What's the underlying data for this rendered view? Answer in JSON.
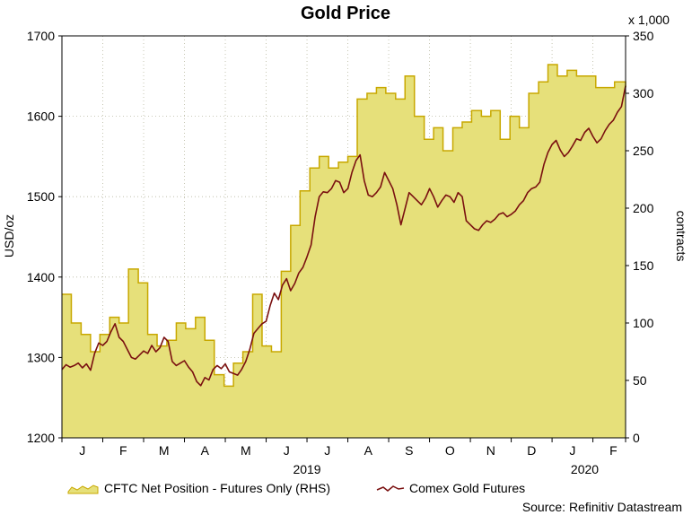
{
  "chart_data": {
    "type": "area",
    "title": "Gold Price",
    "y_left": {
      "label": "USD/oz",
      "range": [
        1200,
        1700
      ],
      "ticks": [
        "1200",
        "1300",
        "1400",
        "1500",
        "1600",
        "1700"
      ]
    },
    "y_right": {
      "label": "contracts",
      "multiplier_label": "x 1,000",
      "range": [
        0,
        350
      ],
      "ticks": [
        "0",
        "50",
        "100",
        "150",
        "200",
        "250",
        "300",
        "350"
      ]
    },
    "x_axis": {
      "range": [
        0,
        13.8
      ],
      "months": [
        {
          "label": "J",
          "x": 0.5
        },
        {
          "label": "F",
          "x": 1.5
        },
        {
          "label": "M",
          "x": 2.5
        },
        {
          "label": "A",
          "x": 3.5
        },
        {
          "label": "M",
          "x": 4.5
        },
        {
          "label": "J",
          "x": 5.5
        },
        {
          "label": "J",
          "x": 6.5
        },
        {
          "label": "A",
          "x": 7.5
        },
        {
          "label": "S",
          "x": 8.5
        },
        {
          "label": "O",
          "x": 9.5
        },
        {
          "label": "N",
          "x": 10.5
        },
        {
          "label": "D",
          "x": 11.5
        },
        {
          "label": "J",
          "x": 12.5
        },
        {
          "label": "F",
          "x": 13.5
        }
      ],
      "years": [
        {
          "label": "2019",
          "x": 6.0
        },
        {
          "label": "2020",
          "x": 12.8
        }
      ]
    },
    "grid": true,
    "series": [
      {
        "name": "CFTC Net Position - Futures Only (RHS)",
        "type": "area-step",
        "axis": "right",
        "color": "#e6e07a",
        "line_color": "#c8a800",
        "x": [
          0,
          0.23,
          0.47,
          0.7,
          0.93,
          1.17,
          1.4,
          1.63,
          1.87,
          2.1,
          2.33,
          2.57,
          2.8,
          3.03,
          3.27,
          3.5,
          3.73,
          3.97,
          4.2,
          4.43,
          4.67,
          4.9,
          5.13,
          5.37,
          5.6,
          5.83,
          6.07,
          6.3,
          6.53,
          6.77,
          7.0,
          7.23,
          7.47,
          7.7,
          7.93,
          8.17,
          8.4,
          8.63,
          8.87,
          9.1,
          9.33,
          9.57,
          9.8,
          10.03,
          10.27,
          10.5,
          10.73,
          10.97,
          11.2,
          11.43,
          11.67,
          11.9,
          12.13,
          12.37,
          12.6,
          12.83,
          13.07,
          13.3,
          13.53,
          13.8
        ],
        "values": [
          125,
          100,
          90,
          75,
          90,
          105,
          100,
          147,
          135,
          90,
          80,
          85,
          100,
          95,
          105,
          85,
          55,
          45,
          65,
          75,
          125,
          80,
          75,
          145,
          185,
          215,
          235,
          245,
          235,
          240,
          245,
          295,
          300,
          305,
          300,
          295,
          315,
          280,
          260,
          270,
          250,
          270,
          275,
          285,
          280,
          285,
          260,
          280,
          270,
          300,
          310,
          325,
          315,
          320,
          315,
          315,
          305,
          305,
          310,
          305
        ]
      },
      {
        "name": "Comex Gold Futures",
        "type": "line",
        "axis": "left",
        "color": "#7a1010",
        "x": [
          0,
          0.1,
          0.2,
          0.3,
          0.4,
          0.5,
          0.6,
          0.7,
          0.8,
          0.9,
          1.0,
          1.1,
          1.2,
          1.3,
          1.4,
          1.5,
          1.6,
          1.7,
          1.8,
          1.9,
          2.0,
          2.1,
          2.2,
          2.3,
          2.4,
          2.5,
          2.6,
          2.7,
          2.8,
          2.9,
          3.0,
          3.1,
          3.2,
          3.3,
          3.4,
          3.5,
          3.6,
          3.7,
          3.8,
          3.9,
          4.0,
          4.1,
          4.2,
          4.3,
          4.4,
          4.5,
          4.6,
          4.7,
          4.8,
          4.9,
          5.0,
          5.1,
          5.2,
          5.3,
          5.4,
          5.5,
          5.6,
          5.7,
          5.8,
          5.9,
          6.0,
          6.1,
          6.2,
          6.3,
          6.4,
          6.5,
          6.6,
          6.7,
          6.8,
          6.9,
          7.0,
          7.1,
          7.2,
          7.3,
          7.4,
          7.5,
          7.6,
          7.7,
          7.8,
          7.9,
          8.0,
          8.1,
          8.2,
          8.3,
          8.4,
          8.5,
          8.6,
          8.7,
          8.8,
          8.9,
          9.0,
          9.1,
          9.2,
          9.3,
          9.4,
          9.5,
          9.6,
          9.7,
          9.8,
          9.9,
          10.0,
          10.1,
          10.2,
          10.3,
          10.4,
          10.5,
          10.6,
          10.7,
          10.8,
          10.9,
          11.0,
          11.1,
          11.2,
          11.3,
          11.4,
          11.5,
          11.6,
          11.7,
          11.8,
          11.9,
          12.0,
          12.1,
          12.2,
          12.3,
          12.4,
          12.5,
          12.6,
          12.7,
          12.8,
          12.9,
          13.0,
          13.1,
          13.2,
          13.3,
          13.4,
          13.5,
          13.6,
          13.7,
          13.8
        ],
        "values": [
          1285,
          1291,
          1288,
          1290,
          1293,
          1287,
          1292,
          1284,
          1305,
          1318,
          1315,
          1320,
          1332,
          1342,
          1325,
          1320,
          1310,
          1300,
          1298,
          1303,
          1308,
          1305,
          1315,
          1307,
          1312,
          1325,
          1320,
          1295,
          1290,
          1293,
          1296,
          1288,
          1282,
          1270,
          1265,
          1275,
          1272,
          1285,
          1290,
          1286,
          1292,
          1282,
          1280,
          1278,
          1285,
          1295,
          1310,
          1330,
          1336,
          1342,
          1345,
          1365,
          1380,
          1372,
          1390,
          1398,
          1383,
          1392,
          1405,
          1412,
          1425,
          1440,
          1475,
          1500,
          1506,
          1505,
          1510,
          1520,
          1518,
          1505,
          1510,
          1530,
          1545,
          1552,
          1520,
          1502,
          1500,
          1505,
          1512,
          1530,
          1520,
          1510,
          1490,
          1465,
          1485,
          1505,
          1500,
          1495,
          1490,
          1498,
          1510,
          1500,
          1487,
          1495,
          1502,
          1500,
          1493,
          1505,
          1500,
          1470,
          1465,
          1460,
          1458,
          1465,
          1470,
          1468,
          1472,
          1478,
          1480,
          1475,
          1478,
          1482,
          1490,
          1495,
          1505,
          1510,
          1512,
          1518,
          1540,
          1555,
          1565,
          1570,
          1558,
          1550,
          1555,
          1563,
          1572,
          1570,
          1580,
          1585,
          1575,
          1567,
          1572,
          1582,
          1590,
          1595,
          1605,
          1612,
          1638
        ]
      }
    ],
    "legend_position": "bottom",
    "source": "Source: Refinitiv Datastream"
  }
}
